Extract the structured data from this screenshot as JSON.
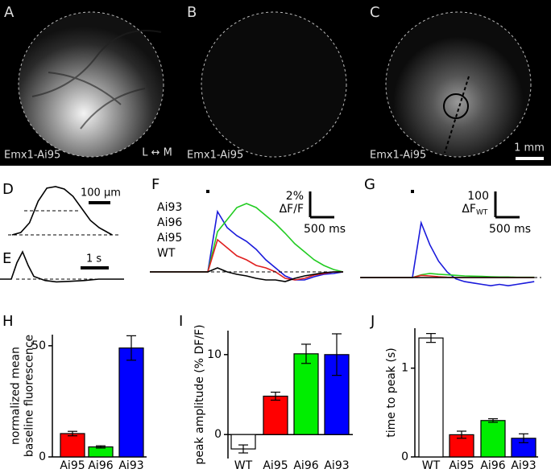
{
  "images": [
    {
      "label": "A",
      "caption": "Emx1-Ai95",
      "orientation": "L ↔ M"
    },
    {
      "label": "B",
      "caption": "Emx1-Ai95"
    },
    {
      "label": "C",
      "caption": "Emx1-Ai95",
      "scale": "1 mm"
    }
  ],
  "chart_data": [
    {
      "type": "line",
      "label": "D",
      "scale_label": "100 µm",
      "x": [
        0,
        40,
        80,
        120,
        160,
        200,
        240,
        280,
        320,
        360,
        400,
        440,
        460
      ],
      "series": [
        {
          "color": "#000000",
          "values": [
            0,
            0.05,
            0.25,
            0.7,
            0.97,
            1.0,
            0.95,
            0.8,
            0.55,
            0.3,
            0.15,
            0.05,
            0
          ]
        }
      ]
    },
    {
      "type": "line",
      "label": "E",
      "scale_label": "1 s",
      "x": [
        0,
        0.4,
        0.6,
        0.8,
        1.0,
        1.2,
        1.6,
        2.0,
        2.5,
        3.0,
        3.5,
        4.0,
        4.4
      ],
      "series": [
        {
          "color": "#000000",
          "values": [
            0,
            0,
            0.6,
            1.0,
            0.5,
            0.1,
            -0.05,
            -0.1,
            -0.08,
            -0.05,
            0,
            0,
            0
          ]
        }
      ]
    },
    {
      "type": "line",
      "label": "F",
      "scale_y": "2%",
      "scale_y_unit": "ΔF/F",
      "scale_x": "500 ms",
      "x": [
        -1.2,
        -1.0,
        -0.8,
        -0.6,
        -0.4,
        -0.2,
        0,
        0.2,
        0.4,
        0.6,
        0.8,
        1.0,
        1.2,
        1.4,
        1.6,
        1.8,
        2.0,
        2.2,
        2.4,
        2.6,
        2.8
      ],
      "series": [
        {
          "name": "Ai93",
          "color": "#1a1adb",
          "values": [
            0,
            0,
            0,
            0,
            0,
            0,
            0,
            7.5,
            5.5,
            4.5,
            3.8,
            2.8,
            1.5,
            0.5,
            -0.5,
            -1.0,
            -1.0,
            -0.6,
            -0.3,
            -0.2,
            0
          ]
        },
        {
          "name": "Ai96",
          "color": "#22cc22",
          "values": [
            0,
            0,
            0,
            0,
            0,
            0,
            0,
            5,
            6.5,
            8,
            8.5,
            8,
            7,
            6,
            4.8,
            3.5,
            2.5,
            1.5,
            0.8,
            0.3,
            0
          ]
        },
        {
          "name": "Ai95",
          "color": "#e02020",
          "values": [
            0,
            0,
            0,
            0,
            0,
            0,
            0,
            4,
            3,
            2.0,
            1.5,
            0.8,
            0.5,
            0,
            -0.8,
            -1,
            -0.8,
            -0.4,
            -0.2,
            0,
            0
          ]
        },
        {
          "name": "WT",
          "color": "#000000",
          "values": [
            0,
            0,
            0,
            0,
            0,
            0,
            0,
            0.5,
            0,
            -0.3,
            -0.5,
            -0.8,
            -1,
            -1,
            -1.2,
            -0.8,
            -0.5,
            -0.3,
            -0.1,
            0,
            0
          ]
        }
      ]
    },
    {
      "type": "line",
      "label": "G",
      "scale_y": "100",
      "scale_y_unit": "ΔF",
      "scale_y_sub": "WT",
      "scale_x": "500 ms",
      "x": [
        -1.2,
        -1.0,
        -0.8,
        -0.6,
        -0.4,
        -0.2,
        0,
        0.2,
        0.4,
        0.6,
        0.8,
        1.0,
        1.2,
        1.4,
        1.6,
        1.8,
        2.0,
        2.2,
        2.4,
        2.6,
        2.8
      ],
      "series": [
        {
          "color": "#1a1adb",
          "values": [
            0,
            0,
            0,
            0,
            0,
            0,
            0,
            200,
            120,
            60,
            20,
            -5,
            -15,
            -20,
            -25,
            -30,
            -25,
            -30,
            -25,
            -20,
            -15
          ]
        },
        {
          "color": "#22cc22",
          "values": [
            0,
            0,
            0,
            0,
            0,
            0,
            0,
            10,
            15,
            12,
            10,
            8,
            6,
            5,
            4,
            3,
            2,
            2,
            1,
            1,
            1
          ]
        },
        {
          "color": "#e02020",
          "values": [
            0,
            0,
            0,
            0,
            0,
            0,
            0,
            8,
            6,
            3,
            1,
            0,
            0,
            0,
            0,
            0,
            0,
            0,
            0,
            0,
            0
          ]
        },
        {
          "color": "#000000",
          "values": [
            0,
            0,
            0,
            0,
            0,
            0,
            0,
            0,
            0,
            0,
            0,
            0,
            0,
            0,
            0,
            0,
            0,
            0,
            0,
            0,
            0
          ]
        }
      ]
    },
    {
      "type": "bar",
      "label": "H",
      "ylabel": [
        "normalized mean",
        "baseline fluorescence"
      ],
      "categories": [
        "Ai95",
        "Ai96",
        "Ai93"
      ],
      "values": [
        10.5,
        4.5,
        49
      ],
      "error": [
        1,
        0.5,
        5.5
      ],
      "colors": [
        "#ff0000",
        "#00ee00",
        "#0000ff"
      ],
      "ylim": [
        0,
        55
      ],
      "yticks": [
        0,
        50
      ]
    },
    {
      "type": "bar",
      "label": "I",
      "ylabel": [
        "peak amplitude (% DF/F)"
      ],
      "categories": [
        "WT",
        "Ai95",
        "Ai96",
        "Ai93"
      ],
      "values": [
        -1.8,
        4.8,
        10.1,
        10
      ],
      "error": [
        0.5,
        0.5,
        1.2,
        2.6
      ],
      "colors": [
        "#ffffff",
        "#ff0000",
        "#00ee00",
        "#0000ff"
      ],
      "ylim": [
        -3,
        13
      ],
      "yticks": [
        0,
        10
      ]
    },
    {
      "type": "bar",
      "label": "J",
      "ylabel": [
        "time to peak (s)"
      ],
      "categories": [
        "WT",
        "Ai95",
        "Ai96",
        "Ai93"
      ],
      "values": [
        1.34,
        0.25,
        0.41,
        0.21
      ],
      "error": [
        0.05,
        0.04,
        0.02,
        0.05
      ],
      "colors": [
        "#ffffff",
        "#ff0000",
        "#00ee00",
        "#0000ff"
      ],
      "ylim": [
        0,
        1.45
      ],
      "yticks": [
        0,
        1
      ]
    }
  ]
}
